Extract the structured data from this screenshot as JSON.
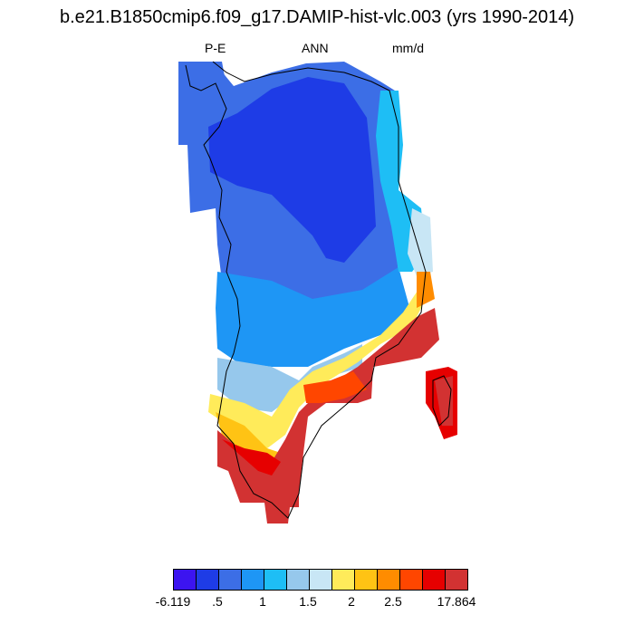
{
  "header": {
    "title": "b.e21.B1850cmip6.f09_g17.DAMIP-hist-vlc.003 (yrs 1990-2014)",
    "left_label": "P-E",
    "center_label": "ANN",
    "right_label": "mm/d"
  },
  "map": {
    "region": "Greenland",
    "variable": "P-E",
    "season": "ANN",
    "units": "mm/d",
    "min_value": -6.119,
    "max_value": 17.864
  },
  "colorbar": {
    "colors": [
      "#3c14f0",
      "#1e3ce6",
      "#3c6ee6",
      "#1e96f5",
      "#1ebef5",
      "#96c8ec",
      "#c8e6f5",
      "#ffeb5a",
      "#ffc314",
      "#ff8c00",
      "#ff4600",
      "#e60000",
      "#d23232"
    ],
    "labels": [
      "-6.119",
      ".5",
      "1",
      "1.5",
      "2",
      "2.5",
      "17.864"
    ]
  }
}
